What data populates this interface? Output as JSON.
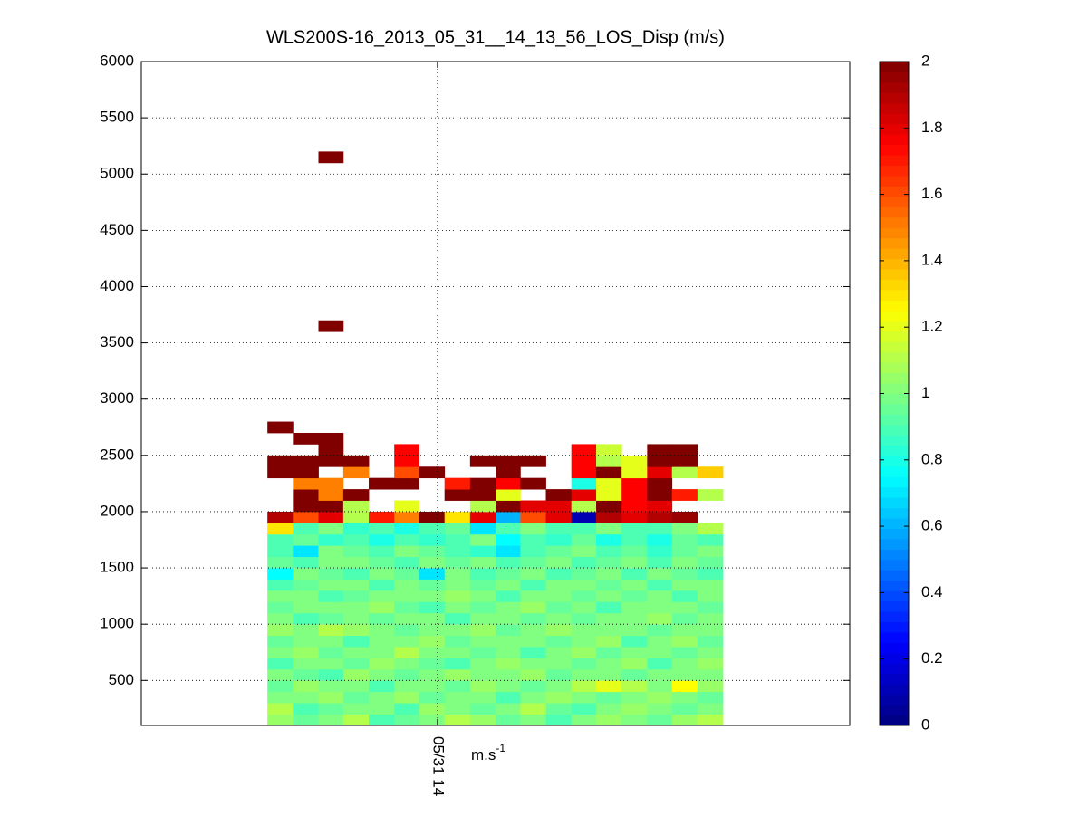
{
  "chart_data": {
    "type": "heatmap",
    "title": "WLS200S-16_2013_05_31__14_13_56_LOS_Disp (m/s)",
    "xlabel": "m.s",
    "xlabel_sup": "-1",
    "xlim": [
      13.582,
      14.582
    ],
    "xticks": [
      {
        "value": 14,
        "label": "05/31 14"
      }
    ],
    "ylim": [
      100,
      6000
    ],
    "yticks": [
      500,
      1000,
      1500,
      2000,
      2500,
      3000,
      3500,
      4000,
      4500,
      5000,
      5500,
      6000
    ],
    "grid": true,
    "colormap": "jet",
    "clim": [
      0,
      2
    ],
    "cticks": [
      0,
      0.2,
      0.4,
      0.6,
      0.8,
      1,
      1.2,
      1.4,
      1.6,
      1.8,
      2
    ],
    "x_edges": [
      13.76,
      13.796,
      13.832,
      13.867,
      13.903,
      13.939,
      13.974,
      14.01,
      14.046,
      14.082,
      14.117,
      14.153,
      14.189,
      14.224,
      14.26,
      14.296,
      14.331,
      14.367,
      14.403
    ],
    "y_edges": [
      100,
      200,
      300,
      400,
      500,
      600,
      700,
      800,
      900,
      1000,
      1100,
      1200,
      1300,
      1400,
      1500,
      1600,
      1700,
      1800,
      1900,
      2000,
      2100,
      2200,
      2300,
      2400,
      2500,
      2600,
      2700,
      2800,
      3600,
      3700,
      5100,
      5200
    ],
    "z": [
      [
        1.05,
        0.95,
        1.0,
        1.1,
        0.9,
        0.95,
        1.0,
        1.1,
        1.05,
        0.95,
        1.0,
        0.9,
        1.0,
        1.05,
        1.0,
        0.95,
        1.05,
        1.1
      ],
      [
        1.1,
        0.9,
        0.95,
        1.0,
        1.0,
        0.9,
        1.05,
        1.0,
        0.95,
        1.0,
        1.1,
        0.95,
        0.9,
        1.0,
        1.05,
        1.0,
        0.95,
        1.0
      ],
      [
        1.0,
        1.0,
        1.05,
        0.95,
        1.0,
        1.05,
        0.95,
        1.0,
        1.0,
        0.9,
        1.0,
        1.05,
        1.0,
        0.95,
        1.0,
        1.05,
        1.0,
        0.95
      ],
      [
        0.95,
        1.05,
        1.0,
        1.0,
        0.9,
        1.0,
        1.0,
        0.95,
        1.05,
        1.0,
        0.95,
        1.0,
        1.1,
        1.2,
        1.1,
        1.0,
        1.25,
        1.05
      ],
      [
        1.0,
        0.95,
        0.9,
        1.05,
        1.0,
        0.95,
        1.0,
        1.05,
        1.0,
        1.0,
        1.05,
        0.95,
        1.0,
        1.0,
        0.95,
        1.0,
        1.0,
        1.0
      ],
      [
        0.9,
        1.0,
        1.0,
        0.95,
        1.05,
        1.0,
        0.95,
        0.9,
        1.0,
        1.05,
        1.0,
        1.0,
        0.95,
        1.0,
        1.05,
        0.9,
        1.0,
        1.05
      ],
      [
        1.0,
        1.05,
        0.95,
        1.0,
        1.0,
        1.1,
        1.0,
        1.0,
        0.95,
        1.0,
        0.9,
        1.0,
        1.05,
        0.95,
        1.0,
        1.0,
        0.95,
        1.0
      ],
      [
        0.95,
        1.0,
        1.0,
        0.9,
        1.0,
        1.0,
        1.05,
        0.95,
        1.0,
        1.0,
        1.0,
        0.95,
        1.0,
        1.05,
        0.9,
        1.0,
        1.05,
        0.95
      ],
      [
        1.05,
        1.0,
        1.1,
        1.05,
        1.0,
        0.95,
        1.0,
        1.0,
        1.05,
        0.95,
        1.0,
        1.05,
        1.0,
        1.0,
        1.0,
        0.95,
        1.0,
        1.0
      ],
      [
        1.0,
        0.9,
        0.95,
        1.0,
        0.95,
        1.0,
        1.0,
        0.9,
        1.0,
        1.0,
        0.95,
        1.0,
        0.95,
        1.0,
        1.0,
        1.05,
        0.95,
        1.0
      ],
      [
        0.95,
        1.0,
        1.0,
        1.0,
        1.05,
        0.95,
        0.9,
        1.0,
        0.95,
        1.0,
        1.05,
        0.95,
        1.0,
        0.9,
        1.0,
        1.0,
        1.0,
        0.95
      ],
      [
        1.0,
        1.0,
        0.9,
        0.95,
        1.0,
        1.0,
        1.0,
        1.05,
        1.0,
        0.9,
        1.0,
        1.0,
        0.95,
        1.0,
        0.95,
        1.0,
        0.9,
        1.0
      ],
      [
        0.9,
        0.95,
        1.0,
        1.0,
        0.9,
        1.0,
        0.95,
        1.0,
        0.95,
        1.0,
        0.9,
        1.0,
        1.0,
        0.95,
        1.0,
        0.9,
        1.0,
        1.0
      ],
      [
        0.75,
        1.0,
        0.95,
        0.9,
        1.0,
        0.95,
        0.7,
        1.0,
        0.9,
        0.95,
        1.0,
        0.9,
        0.95,
        1.0,
        0.9,
        1.0,
        0.95,
        0.9
      ],
      [
        0.95,
        0.9,
        1.0,
        1.0,
        0.95,
        0.9,
        1.0,
        0.95,
        1.0,
        0.9,
        0.95,
        1.0,
        0.9,
        0.95,
        1.0,
        0.9,
        1.0,
        0.95
      ],
      [
        0.9,
        0.7,
        1.0,
        0.95,
        0.9,
        1.0,
        0.95,
        0.9,
        0.85,
        0.7,
        0.9,
        0.95,
        1.0,
        0.9,
        0.95,
        0.85,
        0.95,
        1.0
      ],
      [
        0.9,
        0.95,
        0.85,
        0.9,
        0.8,
        0.9,
        0.85,
        0.9,
        1.0,
        0.75,
        0.9,
        0.85,
        0.95,
        0.8,
        0.9,
        0.8,
        0.95,
        0.9
      ],
      [
        1.3,
        0.9,
        1.0,
        0.85,
        0.9,
        0.8,
        0.9,
        0.95,
        0.7,
        0.9,
        1.0,
        0.9,
        0.9,
        1.0,
        0.9,
        0.9,
        1.0,
        1.1
      ],
      [
        1.9,
        1.6,
        1.8,
        1.1,
        1.7,
        1.5,
        2.0,
        1.3,
        1.8,
        0.6,
        1.6,
        1.8,
        0.1,
        1.9,
        1.8,
        1.9,
        1.95,
        null
      ],
      [
        null,
        2.0,
        2.0,
        1.1,
        null,
        1.2,
        null,
        null,
        1.1,
        2.0,
        1.8,
        1.8,
        1.1,
        2.0,
        1.75,
        1.8,
        null,
        null
      ],
      [
        null,
        2.0,
        1.5,
        2.0,
        null,
        null,
        null,
        2.0,
        2.0,
        1.2,
        null,
        2.0,
        1.8,
        1.2,
        1.75,
        2.0,
        1.7,
        1.1
      ],
      [
        null,
        1.5,
        1.5,
        null,
        2.0,
        2.0,
        null,
        1.7,
        2.0,
        1.75,
        2.0,
        null,
        0.8,
        1.2,
        1.75,
        2.0,
        null,
        null
      ],
      [
        2.0,
        2.0,
        null,
        1.5,
        null,
        1.6,
        2.0,
        null,
        null,
        2.0,
        null,
        null,
        1.75,
        2.0,
        1.2,
        1.8,
        1.1,
        1.35
      ],
      [
        2.0,
        2.0,
        2.0,
        2.0,
        null,
        1.75,
        null,
        null,
        2.0,
        2.0,
        2.0,
        null,
        1.75,
        1.1,
        1.2,
        2.0,
        2.0,
        null
      ],
      [
        null,
        null,
        2.0,
        null,
        null,
        1.75,
        null,
        null,
        null,
        null,
        null,
        null,
        1.75,
        1.15,
        null,
        2.0,
        2.0,
        null
      ],
      [
        null,
        2.0,
        2.0,
        null,
        null,
        null,
        null,
        null,
        null,
        null,
        null,
        null,
        null,
        null,
        null,
        null,
        null,
        null
      ],
      [
        2.0,
        null,
        null,
        null,
        null,
        null,
        null,
        null,
        null,
        null,
        null,
        null,
        null,
        null,
        null,
        null,
        null,
        null
      ],
      [
        null,
        null,
        null,
        null,
        null,
        null,
        null,
        null,
        null,
        null,
        null,
        null,
        null,
        null,
        null,
        null,
        null,
        null
      ],
      [
        null,
        null,
        2.0,
        null,
        null,
        null,
        null,
        null,
        null,
        null,
        null,
        null,
        null,
        null,
        null,
        null,
        null,
        null
      ],
      [
        null,
        null,
        null,
        null,
        null,
        null,
        null,
        null,
        null,
        null,
        null,
        null,
        null,
        null,
        null,
        null,
        null,
        null
      ],
      [
        null,
        null,
        2.0,
        null,
        null,
        null,
        null,
        null,
        null,
        null,
        null,
        null,
        null,
        null,
        null,
        null,
        null,
        null
      ]
    ]
  }
}
